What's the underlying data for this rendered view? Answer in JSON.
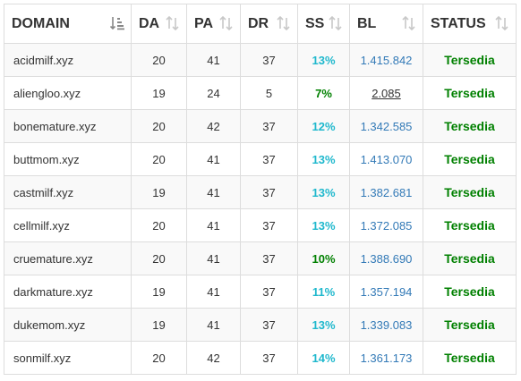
{
  "table": {
    "headers": [
      {
        "key": "domain",
        "label": "DOMAIN",
        "sort_icon": "sort-amount-desc-icon"
      },
      {
        "key": "da",
        "label": "DA",
        "sort_icon": "sort-both-icon"
      },
      {
        "key": "pa",
        "label": "PA",
        "sort_icon": "sort-both-icon"
      },
      {
        "key": "dr",
        "label": "DR",
        "sort_icon": "sort-both-icon"
      },
      {
        "key": "ss",
        "label": "SS",
        "sort_icon": "sort-both-icon"
      },
      {
        "key": "bl",
        "label": "BL",
        "sort_icon": "sort-both-icon"
      },
      {
        "key": "status",
        "label": "STATUS",
        "sort_icon": "sort-both-icon"
      }
    ],
    "rows": [
      {
        "domain": "acidmilf.xyz",
        "da": "20",
        "pa": "41",
        "dr": "37",
        "ss": "13%",
        "ss_color": "#1fb8cd",
        "bl": "1.415.842",
        "bl_link": false,
        "status": "Tersedia"
      },
      {
        "domain": "aliengloo.xyz",
        "da": "19",
        "pa": "24",
        "dr": "5",
        "ss": "7%",
        "ss_color": "#008000",
        "bl": "2.085",
        "bl_link": true,
        "status": "Tersedia"
      },
      {
        "domain": "bonemature.xyz",
        "da": "20",
        "pa": "42",
        "dr": "37",
        "ss": "12%",
        "ss_color": "#1fb8cd",
        "bl": "1.342.585",
        "bl_link": false,
        "status": "Tersedia"
      },
      {
        "domain": "buttmom.xyz",
        "da": "20",
        "pa": "41",
        "dr": "37",
        "ss": "13%",
        "ss_color": "#1fb8cd",
        "bl": "1.413.070",
        "bl_link": false,
        "status": "Tersedia"
      },
      {
        "domain": "castmilf.xyz",
        "da": "19",
        "pa": "41",
        "dr": "37",
        "ss": "13%",
        "ss_color": "#1fb8cd",
        "bl": "1.382.681",
        "bl_link": false,
        "status": "Tersedia"
      },
      {
        "domain": "cellmilf.xyz",
        "da": "20",
        "pa": "41",
        "dr": "37",
        "ss": "13%",
        "ss_color": "#1fb8cd",
        "bl": "1.372.085",
        "bl_link": false,
        "status": "Tersedia"
      },
      {
        "domain": "cruemature.xyz",
        "da": "20",
        "pa": "41",
        "dr": "37",
        "ss": "10%",
        "ss_color": "#008000",
        "bl": "1.388.690",
        "bl_link": false,
        "status": "Tersedia"
      },
      {
        "domain": "darkmature.xyz",
        "da": "19",
        "pa": "41",
        "dr": "37",
        "ss": "11%",
        "ss_color": "#1fb8cd",
        "bl": "1.357.194",
        "bl_link": false,
        "status": "Tersedia"
      },
      {
        "domain": "dukemom.xyz",
        "da": "19",
        "pa": "41",
        "dr": "37",
        "ss": "13%",
        "ss_color": "#1fb8cd",
        "bl": "1.339.083",
        "bl_link": false,
        "status": "Tersedia"
      },
      {
        "domain": "sonmilf.xyz",
        "da": "20",
        "pa": "42",
        "dr": "37",
        "ss": "14%",
        "ss_color": "#1fb8cd",
        "bl": "1.361.173",
        "bl_link": false,
        "status": "Tersedia"
      }
    ]
  },
  "colors": {
    "link": "#337ab7",
    "status_available": "#008000",
    "ss_default": "#1fb8cd",
    "ss_low": "#008000",
    "border": "#dddddd",
    "stripe": "#f9f9f9",
    "sort_inactive": "#c8c8c8",
    "sort_active": "#888888"
  }
}
